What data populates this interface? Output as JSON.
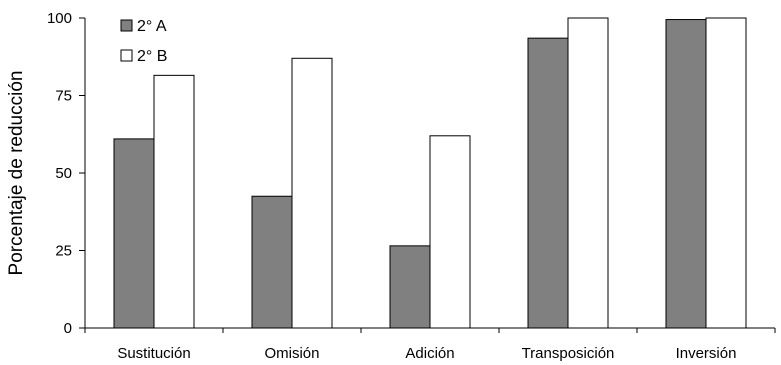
{
  "chart_data": {
    "type": "bar",
    "title": "",
    "xlabel": "",
    "ylabel": "Porcentaje de reducción",
    "ylim": [
      0,
      100
    ],
    "yticks": [
      0,
      25,
      50,
      75,
      100
    ],
    "categories": [
      "Sustitución",
      "Omisión",
      "Adición",
      "Transposición",
      "Inversión"
    ],
    "series": [
      {
        "name": "2° A",
        "values": [
          61,
          42.5,
          26.5,
          93.5,
          99.5
        ],
        "color": "#808080"
      },
      {
        "name": "2° B",
        "values": [
          81.5,
          87,
          62,
          100,
          100
        ],
        "color": "#ffffff"
      }
    ],
    "grid": false,
    "legend_position": "top-left"
  }
}
